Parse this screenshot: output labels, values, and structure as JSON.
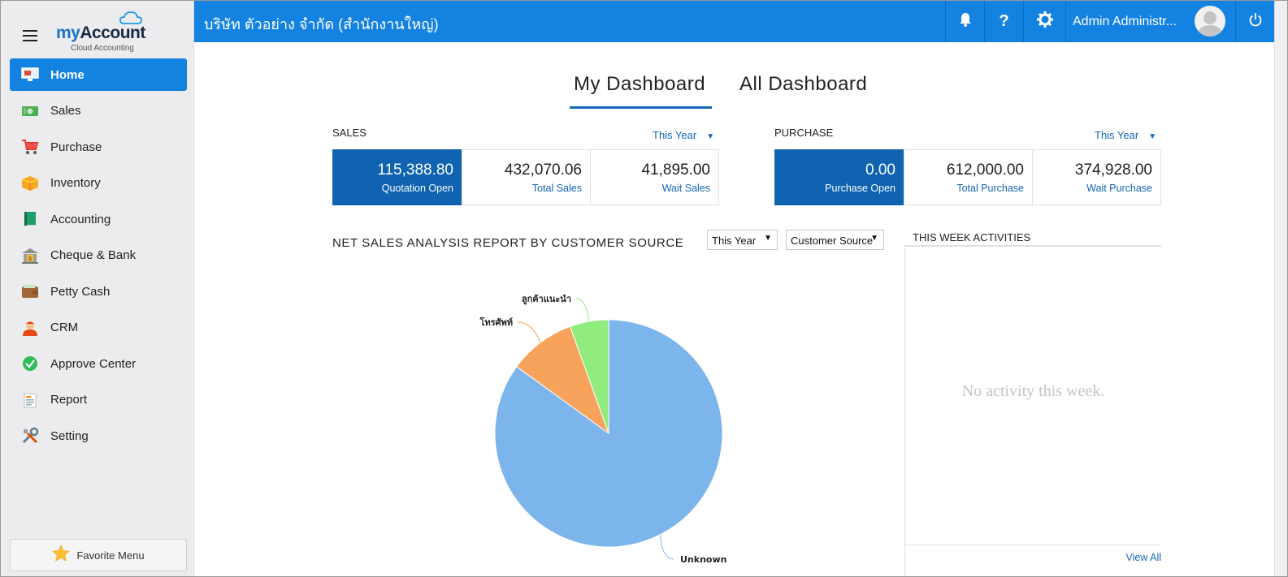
{
  "sidebar": {
    "logo_brand_my": "my",
    "logo_brand_account": "Account",
    "logo_sub": "Cloud Accounting",
    "items": [
      {
        "label": "Home",
        "icon": "monitor-icon",
        "active": true
      },
      {
        "label": "Sales",
        "icon": "cash-icon"
      },
      {
        "label": "Purchase",
        "icon": "cart-icon"
      },
      {
        "label": "Inventory",
        "icon": "box-icon"
      },
      {
        "label": "Accounting",
        "icon": "book-icon"
      },
      {
        "label": "Cheque & Bank",
        "icon": "bank-icon"
      },
      {
        "label": "Petty Cash",
        "icon": "wallet-icon"
      },
      {
        "label": "CRM",
        "icon": "person-icon"
      },
      {
        "label": "Approve Center",
        "icon": "check-circle-icon"
      },
      {
        "label": "Report",
        "icon": "report-icon"
      },
      {
        "label": "Setting",
        "icon": "tools-icon"
      }
    ],
    "favorite_label": "Favorite Menu"
  },
  "topbar": {
    "company": "บริษัท ตัวอย่าง จำกัด (สำนักงานใหญ่)",
    "user_name": "Admin Administr...",
    "accent": "#1482e0"
  },
  "dashboard": {
    "tabs": [
      {
        "label": "My Dashboard",
        "active": true
      },
      {
        "label": "All Dashboard",
        "active": false
      }
    ]
  },
  "sales": {
    "title": "SALES",
    "range": "This Year",
    "kpis": [
      {
        "value": "115,388.80",
        "caption": "Quotation Open"
      },
      {
        "value": "432,070.06",
        "caption": "Total Sales"
      },
      {
        "value": "41,895.00",
        "caption": "Wait Sales"
      }
    ]
  },
  "purchase": {
    "title": "PURCHASE",
    "range": "This Year",
    "kpis": [
      {
        "value": "0.00",
        "caption": "Purchase Open"
      },
      {
        "value": "612,000.00",
        "caption": "Total Purchase"
      },
      {
        "value": "374,928.00",
        "caption": "Wait Purchase"
      }
    ]
  },
  "report": {
    "title": "NET SALES ANALYSIS REPORT BY CUSTOMER SOURCE",
    "period_select": "This Year",
    "group_select": "Customer Source"
  },
  "chart_data": {
    "type": "pie",
    "title": "NET SALES ANALYSIS REPORT BY CUSTOMER SOURCE",
    "categories": [
      "Unknown",
      "โทรศัพท์",
      "ลูกค้าแนะนำ"
    ],
    "values": [
      85,
      9.5,
      5.5
    ],
    "colors": [
      "#7cb5ec",
      "#f7a35c",
      "#90ed7d"
    ],
    "legend": "none"
  },
  "activities": {
    "title": "THIS WEEK ACTIVITIES",
    "empty_text": "No activity this week.",
    "view_all": "View All"
  }
}
